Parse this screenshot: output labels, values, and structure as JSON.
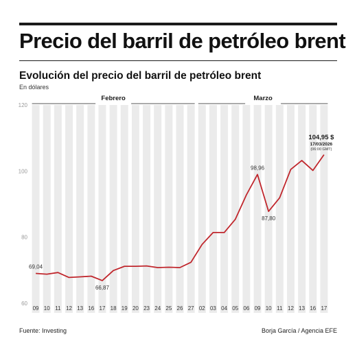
{
  "header": {
    "title": "Precio del barril de petróleo brent",
    "subtitle": "Evolución del precio del barril de petróleo brent",
    "units": "En dólares"
  },
  "footer": {
    "source": "Fuente: Investing",
    "credit": "Borja García / Agencia EFE"
  },
  "colors": {
    "line": "#c0262c",
    "band": "#ebebeb",
    "text": "#1a1a1a"
  },
  "chart_data": {
    "type": "line",
    "title": "Evolución del precio del barril de petróleo brent",
    "ylabel": "En dólares",
    "ylim": [
      60,
      120
    ],
    "yticks": [
      60,
      80,
      100,
      120
    ],
    "grid": false,
    "x": [
      "09",
      "10",
      "11",
      "12",
      "13",
      "16",
      "17",
      "18",
      "19",
      "20",
      "23",
      "24",
      "25",
      "26",
      "27",
      "02",
      "03",
      "04",
      "05",
      "06",
      "09",
      "10",
      "11",
      "12",
      "13",
      "16",
      "17"
    ],
    "months": [
      {
        "label": "Febrero",
        "from": 0,
        "to": 14
      },
      {
        "label": "Marzo",
        "from": 15,
        "to": 26
      }
    ],
    "series": [
      {
        "values": [
          69.04,
          68.8,
          69.3,
          67.8,
          68.0,
          68.2,
          66.87,
          69.9,
          71.2,
          71.2,
          71.3,
          70.8,
          70.9,
          70.8,
          72.4,
          77.8,
          81.4,
          81.4,
          85.4,
          92.8,
          98.96,
          87.8,
          91.9,
          100.5,
          103.2,
          100.2,
          104.95
        ]
      }
    ],
    "annotations": [
      {
        "index": 0,
        "text": "69,04",
        "pos": "above"
      },
      {
        "index": 6,
        "text": "66,87",
        "pos": "below"
      },
      {
        "index": 20,
        "text": "98,96",
        "pos": "above"
      },
      {
        "index": 21,
        "text": "87,80",
        "pos": "below"
      }
    ],
    "last_label": {
      "value": "104,95 $",
      "date": "17/03/2026",
      "time": "(06:00 GMT)"
    }
  }
}
